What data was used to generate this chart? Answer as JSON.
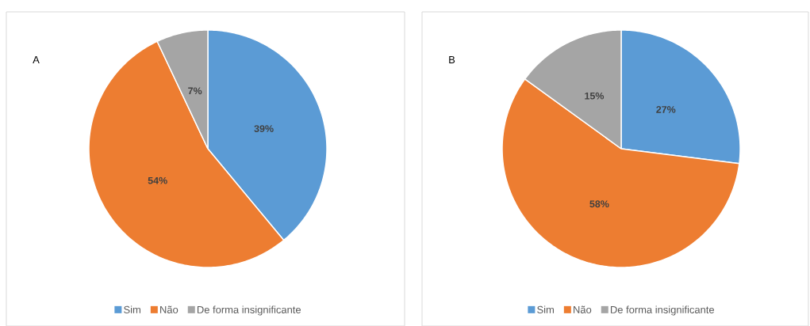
{
  "chart_data": [
    {
      "type": "pie",
      "title": "A",
      "categories": [
        "Sim",
        "Não",
        "De forma insignificante"
      ],
      "values": [
        39,
        54,
        7
      ],
      "colors": [
        "#5b9bd5",
        "#ed7d31",
        "#a5a5a5"
      ],
      "value_labels": [
        "39%",
        "54%",
        "7%"
      ],
      "legend": "bottom"
    },
    {
      "type": "pie",
      "title": "B",
      "categories": [
        "Sim",
        "Não",
        "De forma insignificante"
      ],
      "values": [
        27,
        58,
        15
      ],
      "colors": [
        "#5b9bd5",
        "#ed7d31",
        "#a5a5a5"
      ],
      "value_labels": [
        "27%",
        "58%",
        "15%"
      ],
      "legend": "bottom"
    }
  ]
}
